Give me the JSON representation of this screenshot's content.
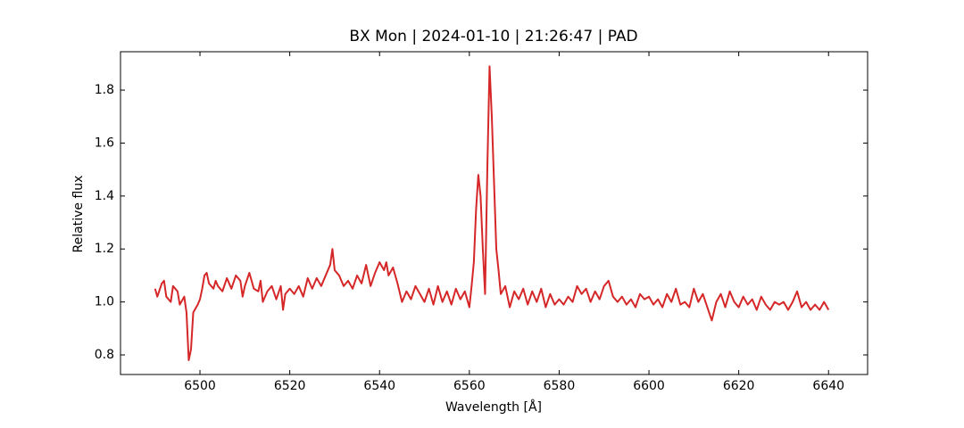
{
  "chart_data": {
    "type": "line",
    "title": "BX Mon | 2024-01-10 | 21:26:47 | PAD",
    "x_label": "Wavelength [Å]",
    "y_label": "Relative flux",
    "xlim": [
      6482.3,
      6648.7
    ],
    "ylim": [
      0.726,
      1.945
    ],
    "xticks": [
      6500,
      6520,
      6540,
      6560,
      6580,
      6600,
      6620,
      6640
    ],
    "yticks": [
      0.8,
      {
        "value": 1,
        "label": "1.0"
      },
      1.2,
      1.4,
      1.6,
      1.8
    ],
    "series": [
      {
        "color": "#d62728",
        "x": [
          6490,
          6490.5,
          6491.5,
          6492,
          6492.5,
          6493.5,
          6494,
          6495,
          6495.5,
          6496.5,
          6497,
          6497.5,
          6498,
          6498.5,
          6499.5,
          6500,
          6500.5,
          6501,
          6501.5,
          6502,
          6503,
          6503.5,
          6504,
          6505,
          6506,
          6507,
          6508,
          6509,
          6509.5,
          6510,
          6511,
          6512,
          6513,
          6513.5,
          6514,
          6515,
          6516,
          6517,
          6518,
          6518.5,
          6519,
          6520,
          6521,
          6522,
          6523,
          6524,
          6525,
          6526,
          6527,
          6528,
          6529,
          6529.5,
          6530,
          6531,
          6532,
          6533,
          6534,
          6535,
          6536,
          6537,
          6538,
          6539,
          6540,
          6541,
          6541.5,
          6542,
          6543,
          6544,
          6545,
          6546,
          6547,
          6548,
          6549,
          6550,
          6551,
          6552,
          6553,
          6554,
          6555,
          6556,
          6557,
          6558,
          6559,
          6560,
          6560.5,
          6561,
          6561.5,
          6562,
          6562.5,
          6563,
          6563.5,
          6564,
          6564.5,
          6565,
          6565.5,
          6566,
          6566.5,
          6567,
          6568,
          6569,
          6570,
          6571,
          6572,
          6573,
          6574,
          6575,
          6576,
          6577,
          6578,
          6579,
          6580,
          6581,
          6582,
          6583,
          6584,
          6585,
          6586,
          6587,
          6588,
          6589,
          6590,
          6591,
          6592,
          6593,
          6594,
          6595,
          6596,
          6597,
          6598,
          6599,
          6600,
          6601,
          6602,
          6603,
          6604,
          6605,
          6606,
          6607,
          6608,
          6609,
          6610,
          6611,
          6612,
          6613,
          6614,
          6615,
          6616,
          6617,
          6618,
          6619,
          6620,
          6621,
          6622,
          6623,
          6624,
          6625,
          6626,
          6627,
          6628,
          6629,
          6630,
          6631,
          6632,
          6633,
          6634,
          6635,
          6636,
          6637,
          6638,
          6639,
          6640
        ],
        "values": [
          1.05,
          1.02,
          1.07,
          1.08,
          1.02,
          1.0,
          1.06,
          1.04,
          0.99,
          1.02,
          0.96,
          0.78,
          0.82,
          0.96,
          0.99,
          1.01,
          1.05,
          1.1,
          1.11,
          1.07,
          1.05,
          1.08,
          1.06,
          1.04,
          1.09,
          1.05,
          1.1,
          1.08,
          1.02,
          1.06,
          1.11,
          1.05,
          1.04,
          1.08,
          1.0,
          1.04,
          1.06,
          1.01,
          1.06,
          0.97,
          1.03,
          1.05,
          1.03,
          1.06,
          1.02,
          1.09,
          1.05,
          1.09,
          1.06,
          1.1,
          1.14,
          1.2,
          1.12,
          1.1,
          1.06,
          1.08,
          1.05,
          1.1,
          1.07,
          1.14,
          1.06,
          1.11,
          1.15,
          1.12,
          1.15,
          1.1,
          1.13,
          1.07,
          1.0,
          1.04,
          1.01,
          1.06,
          1.03,
          1.0,
          1.05,
          0.99,
          1.06,
          1.0,
          1.04,
          0.99,
          1.05,
          1.01,
          1.04,
          0.98,
          1.06,
          1.15,
          1.35,
          1.48,
          1.4,
          1.2,
          1.03,
          1.5,
          1.89,
          1.7,
          1.45,
          1.2,
          1.12,
          1.03,
          1.06,
          0.98,
          1.04,
          1.01,
          1.05,
          0.99,
          1.04,
          1.0,
          1.05,
          0.98,
          1.03,
          0.99,
          1.01,
          0.99,
          1.02,
          1.0,
          1.06,
          1.03,
          1.05,
          1.0,
          1.04,
          1.01,
          1.06,
          1.08,
          1.02,
          1.0,
          1.02,
          0.99,
          1.01,
          0.98,
          1.03,
          1.01,
          1.02,
          0.99,
          1.01,
          0.98,
          1.03,
          1.0,
          1.05,
          0.99,
          1.0,
          0.98,
          1.05,
          1.0,
          1.03,
          0.98,
          0.93,
          1.0,
          1.03,
          0.98,
          1.04,
          1.0,
          0.98,
          1.02,
          0.99,
          1.01,
          0.97,
          1.02,
          0.99,
          0.97,
          1.0,
          0.99,
          1.0,
          0.97,
          1.0,
          1.04,
          0.98,
          1.0,
          0.97,
          0.99,
          0.97,
          1.0,
          0.97
        ]
      }
    ]
  }
}
